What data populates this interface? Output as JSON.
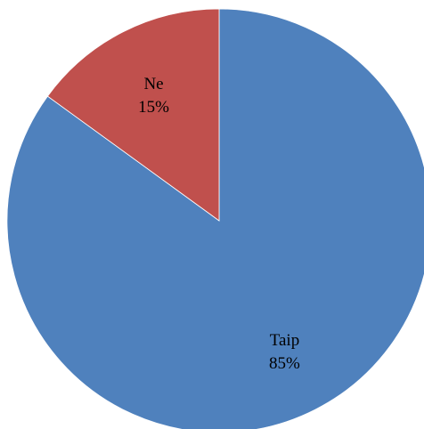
{
  "chart_data": {
    "type": "pie",
    "start_angle_deg": 0,
    "direction": "clockwise",
    "slices": [
      {
        "category": "Taip",
        "percent_label": "85%",
        "value": 85,
        "color": "#4F81BD"
      },
      {
        "category": "Ne",
        "percent_label": "15%",
        "value": 15,
        "color": "#C0504D"
      }
    ],
    "legend": "none",
    "title": ""
  }
}
